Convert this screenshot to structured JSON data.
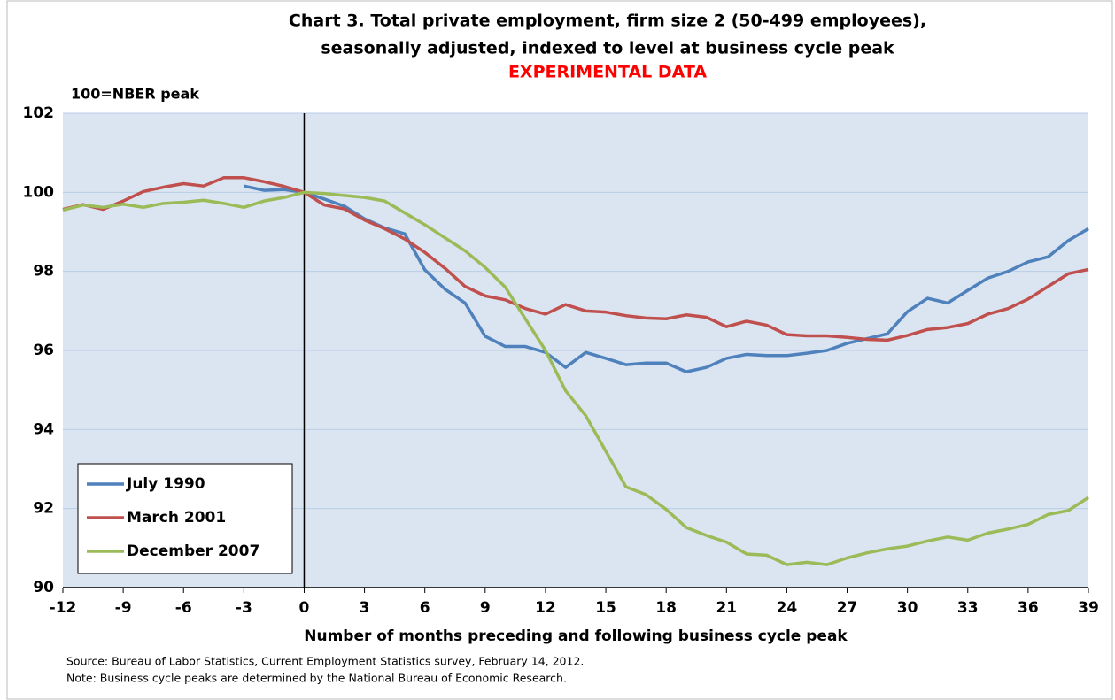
{
  "chart_data": {
    "type": "line",
    "title": [
      "Chart 3.  Total private employment, firm size 2 (50-499 employees),",
      "seasonally adjusted, indexed to level at business cycle peak"
    ],
    "subtitle": "EXPERIMENTAL DATA",
    "subtitle_color": "#ff0000",
    "y_label": "100=NBER peak",
    "x_label": "Number of months preceding and following business cycle peak",
    "source": "Source: Bureau of Labor Statistics, Current Employment Statistics survey, February 14, 2012.",
    "note": "Note: Business cycle peaks are determined by the National Bureau of Economic Research.",
    "x": [
      -12,
      -11,
      -10,
      -9,
      -8,
      -7,
      -6,
      -5,
      -4,
      -3,
      -2,
      -1,
      0,
      1,
      2,
      3,
      4,
      5,
      6,
      7,
      8,
      9,
      10,
      11,
      12,
      13,
      14,
      15,
      16,
      17,
      18,
      19,
      20,
      21,
      22,
      23,
      24,
      25,
      26,
      27,
      28,
      29,
      30,
      31,
      32,
      33,
      34,
      35,
      36,
      37,
      38,
      39
    ],
    "series": [
      {
        "name": "July 1990",
        "color": "#4f81bd",
        "values": [
          null,
          null,
          null,
          null,
          null,
          null,
          null,
          null,
          null,
          100.16,
          100.05,
          100.07,
          100.0,
          99.83,
          99.65,
          99.33,
          99.1,
          98.95,
          98.04,
          97.55,
          97.2,
          96.36,
          96.1,
          96.1,
          95.95,
          95.57,
          95.95,
          95.8,
          95.64,
          95.68,
          95.68,
          95.46,
          95.57,
          95.8,
          95.9,
          95.87,
          95.87,
          95.93,
          96.0,
          96.18,
          96.3,
          96.42,
          96.98,
          97.32,
          97.2,
          97.52,
          97.83,
          98.0,
          98.24,
          98.37,
          98.78,
          99.08
        ]
      },
      {
        "name": "March 2001",
        "color": "#c0504d",
        "values": [
          99.57,
          99.69,
          99.57,
          99.78,
          100.02,
          100.13,
          100.22,
          100.16,
          100.37,
          100.37,
          100.27,
          100.15,
          100.0,
          99.68,
          99.58,
          99.3,
          99.08,
          98.82,
          98.48,
          98.08,
          97.62,
          97.38,
          97.28,
          97.06,
          96.92,
          97.16,
          97.0,
          96.97,
          96.88,
          96.82,
          96.8,
          96.9,
          96.84,
          96.6,
          96.74,
          96.64,
          96.4,
          96.37,
          96.37,
          96.33,
          96.28,
          96.26,
          96.38,
          96.53,
          96.58,
          96.68,
          96.92,
          97.06,
          97.3,
          97.62,
          97.94,
          98.05
        ]
      },
      {
        "name": "December 2007",
        "color": "#9bbb59",
        "values": [
          99.55,
          99.68,
          99.62,
          99.7,
          99.62,
          99.72,
          99.75,
          99.8,
          99.72,
          99.62,
          99.78,
          99.87,
          100.0,
          99.97,
          99.92,
          99.87,
          99.78,
          99.48,
          99.18,
          98.85,
          98.52,
          98.1,
          97.6,
          96.8,
          96.0,
          94.98,
          94.35,
          93.45,
          92.55,
          92.35,
          91.98,
          91.52,
          91.32,
          91.15,
          90.85,
          90.82,
          90.58,
          90.64,
          90.58,
          90.75,
          90.88,
          90.98,
          91.05,
          91.18,
          91.28,
          91.2,
          91.38,
          91.48,
          91.6,
          91.85,
          91.95,
          92.28
        ]
      }
    ],
    "xlim": [
      -12,
      39
    ],
    "xticks": [
      -12,
      -9,
      -6,
      -3,
      0,
      3,
      6,
      9,
      12,
      15,
      18,
      21,
      24,
      27,
      30,
      33,
      36,
      39
    ],
    "ylim": [
      90,
      102
    ],
    "yticks": [
      90,
      92,
      94,
      96,
      98,
      100,
      102
    ],
    "grid": true,
    "legend": "lower left"
  }
}
